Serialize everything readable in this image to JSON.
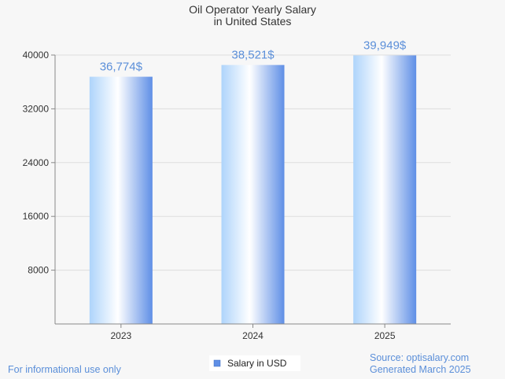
{
  "chart_data": {
    "type": "bar",
    "title_line1": "Oil Operator Yearly Salary",
    "title_line2": "in United States",
    "categories": [
      "2023",
      "2024",
      "2025"
    ],
    "values": [
      36774,
      38521,
      39949
    ],
    "data_labels": [
      "36,774$",
      "38,521$",
      "39,949$"
    ],
    "series_name": "Salary in USD",
    "ylim": [
      0,
      40000
    ],
    "yticks": [
      8000,
      16000,
      24000,
      32000,
      40000
    ],
    "ytick_labels": [
      "8000",
      "16000",
      "24000",
      "32000",
      "40000"
    ],
    "grid": true,
    "legend_position": "bottom-center"
  },
  "footer": {
    "left_note": "For informational use only",
    "source": "Source: optisalary.com",
    "generated": "Generated March 2025"
  },
  "colors": {
    "bar_light": "#aed4fb",
    "bar_white": "#ffffff",
    "bar_dark": "#5f8fe6",
    "label_blue": "#5b8fd9",
    "grid": "#dddddd",
    "axis": "#888888"
  }
}
